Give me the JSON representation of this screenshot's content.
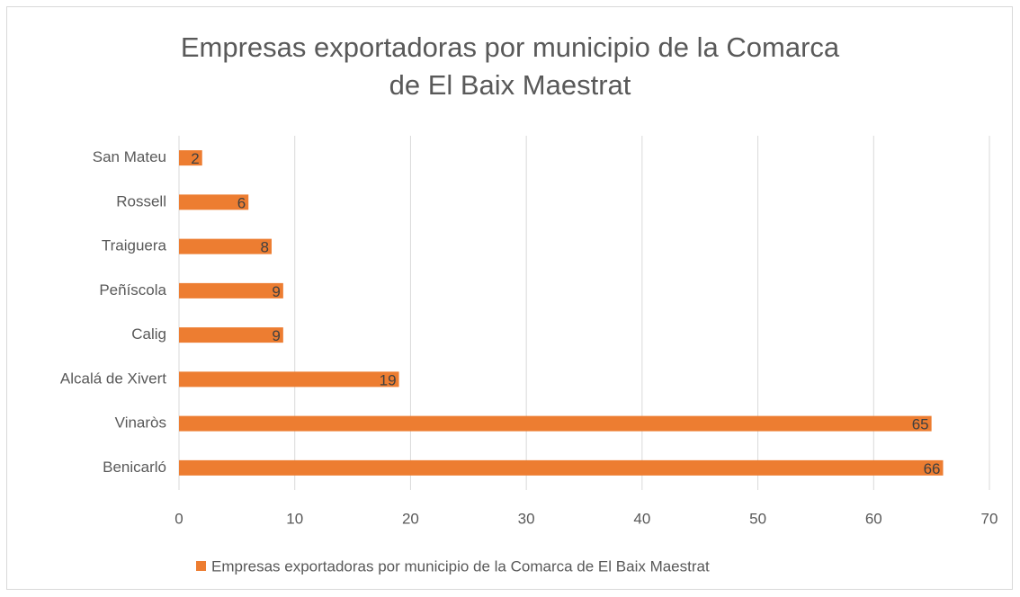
{
  "chart_data": {
    "type": "bar",
    "orientation": "horizontal",
    "title": "Empresas exportadoras por municipio de la Comarca de El Baix Maestrat",
    "categories": [
      "San Mateu",
      "Rossell",
      "Traiguera",
      "Peñíscola",
      "Calig",
      "Alcalá de Xivert",
      "Vinaròs",
      "Benicarló"
    ],
    "series": [
      {
        "name": "Empresas exportadoras por municipio de la Comarca de El Baix Maestrat",
        "color": "#ed7d31",
        "values": [
          2,
          6,
          8,
          9,
          9,
          19,
          65,
          66
        ]
      }
    ],
    "xlim": [
      0,
      70
    ],
    "xticks": [
      0,
      10,
      20,
      30,
      40,
      50,
      60,
      70
    ],
    "grid": true,
    "legend": "bottom",
    "data_labels": true
  }
}
